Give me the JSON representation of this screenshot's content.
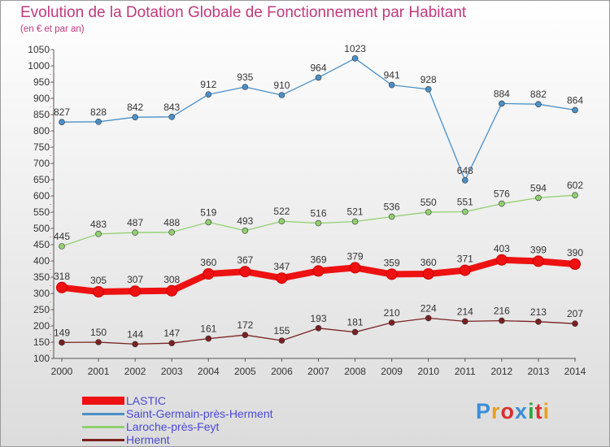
{
  "title": "Evolution de la Dotation Globale de Fonctionnement par Habitant",
  "subtitle": "(en € et par an)",
  "logo": {
    "text": "Proxiti",
    "colors": [
      "#3a8fd8",
      "#e8a020",
      "#d83030",
      "#3a8fd8",
      "#2aa838",
      "#d83030",
      "#e8a020"
    ]
  },
  "chart_data": {
    "type": "line",
    "x": [
      "2000",
      "2001",
      "2002",
      "2003",
      "2004",
      "2005",
      "2006",
      "2007",
      "2008",
      "2009",
      "2010",
      "2011",
      "2012",
      "2013",
      "2014"
    ],
    "ylim": [
      100,
      1050
    ],
    "yticks": [
      "100",
      "150",
      "200",
      "250",
      "300",
      "350",
      "400",
      "450",
      "500",
      "550",
      "600",
      "650",
      "700",
      "750",
      "800",
      "850",
      "900",
      "950",
      "1000",
      "1050"
    ],
    "grid": false,
    "legend_position": "bottom-left",
    "series": [
      {
        "name": "LASTIC",
        "color": "#ee1111",
        "values": [
          318,
          305,
          307,
          308,
          360,
          367,
          347,
          369,
          379,
          359,
          360,
          371,
          403,
          399,
          390
        ]
      },
      {
        "name": "Saint-Germain-près-Herment",
        "color": "#4a90c8",
        "values": [
          827,
          828,
          842,
          843,
          912,
          935,
          910,
          964,
          1023,
          941,
          928,
          648,
          884,
          882,
          864
        ]
      },
      {
        "name": "Laroche-près-Feyt",
        "color": "#90d070",
        "values": [
          445,
          483,
          487,
          488,
          519,
          493,
          522,
          516,
          521,
          536,
          550,
          551,
          576,
          594,
          602
        ]
      },
      {
        "name": "Herment",
        "color": "#7a2020",
        "values": [
          149,
          150,
          144,
          147,
          161,
          172,
          155,
          193,
          181,
          210,
          224,
          214,
          216,
          213,
          207
        ]
      }
    ]
  }
}
